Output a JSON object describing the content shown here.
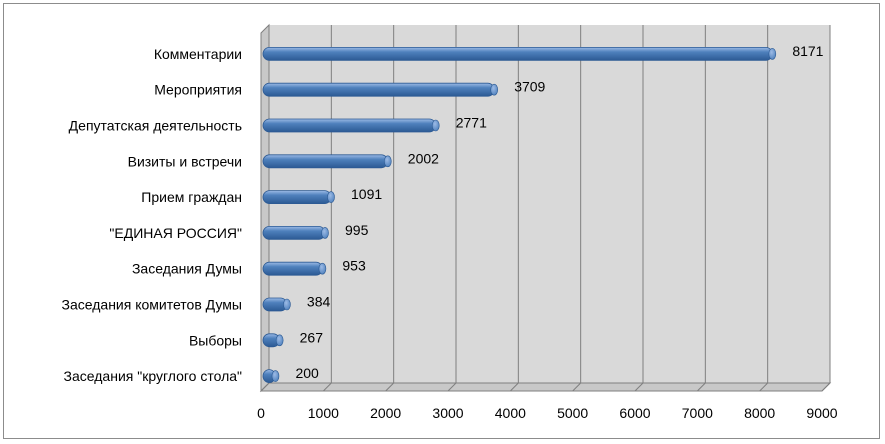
{
  "chart_data": {
    "type": "bar",
    "orientation": "horizontal",
    "style": "3d-cylinder",
    "categories": [
      "Комментарии",
      "Мероприятия",
      "Депутатская деятельность",
      "Визиты и встречи",
      "Прием граждан",
      "\"ЕДИНАЯ РОССИЯ\"",
      "Заседания Думы",
      "Заседания комитетов Думы",
      "Выборы",
      "Заседания \"круглого стола\""
    ],
    "values": [
      8171,
      3709,
      2771,
      2002,
      1091,
      995,
      953,
      384,
      267,
      200
    ],
    "value_labels": [
      "8171",
      "3709",
      "2771",
      "2002",
      "1091",
      "995",
      "953",
      "384",
      "267",
      "200"
    ],
    "xlim": [
      0,
      9000
    ],
    "x_ticks": [
      "0",
      "1000",
      "2000",
      "3000",
      "4000",
      "5000",
      "6000",
      "7000",
      "8000",
      "9000"
    ],
    "grid": true,
    "legend": "none",
    "colors": {
      "bar": "#4f81bd",
      "bar_dark": "#2c5a94",
      "bar_light": "#9dbbe6",
      "wall": "#d9d9d9",
      "gridline": "#7f7f7f"
    }
  }
}
